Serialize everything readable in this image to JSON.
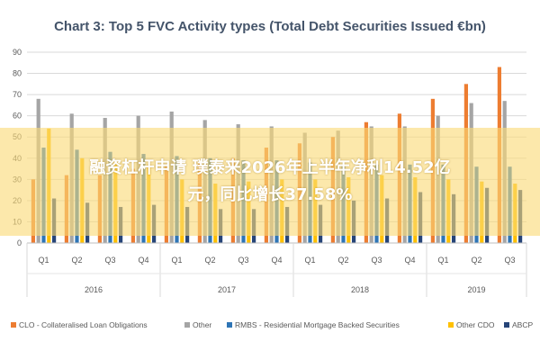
{
  "chart_data": {
    "type": "bar",
    "title": "Chart 3: Top 5 FVC Activity types (Total Debt Securities Issued €bn)",
    "ylim": [
      0,
      90
    ],
    "yticks": [
      0,
      10,
      20,
      30,
      40,
      50,
      60,
      70,
      80,
      90
    ],
    "categories": [
      "Q1",
      "Q2",
      "Q3",
      "Q4",
      "Q1",
      "Q2",
      "Q3",
      "Q4",
      "Q1",
      "Q2",
      "Q3",
      "Q4",
      "Q1",
      "Q2",
      "Q3"
    ],
    "years": [
      {
        "label": "2016",
        "span": 4
      },
      {
        "label": "2017",
        "span": 4
      },
      {
        "label": "2018",
        "span": 4
      },
      {
        "label": "2019",
        "span": 3
      }
    ],
    "series": [
      {
        "name": "CLO - Collateralised Loan Obligations",
        "color": "#ed7d31",
        "values": [
          30,
          32,
          32,
          35,
          37,
          38,
          40,
          45,
          47,
          50,
          57,
          61,
          68,
          75,
          83
        ]
      },
      {
        "name": "Other",
        "color": "#a5a5a5",
        "values": [
          68,
          61,
          59,
          60,
          62,
          58,
          56,
          55,
          52,
          53,
          55,
          55,
          60,
          66,
          67
        ]
      },
      {
        "name": "RMBS - Residential Mortgage Backed Securities",
        "color": "#2e75b6",
        "values": [
          45,
          44,
          43,
          42,
          41,
          40,
          39,
          39,
          38,
          37,
          37,
          37,
          37,
          36,
          36
        ]
      },
      {
        "name": "Other CDO",
        "color": "#ffc000",
        "values": [
          54,
          40,
          38,
          37,
          30,
          28,
          29,
          30,
          30,
          31,
          32,
          31,
          30,
          29,
          28
        ]
      },
      {
        "name": "ABCP",
        "color": "#264478",
        "values": [
          21,
          19,
          17,
          18,
          17,
          16,
          16,
          17,
          18,
          20,
          21,
          24,
          23,
          26,
          25
        ]
      }
    ],
    "legend_position": "bottom",
    "grid": true
  },
  "overlay": {
    "line1": "融资杠杆申请 璞泰来2026年上半年净利14.52亿",
    "line2": "元，同比增长37.58%"
  }
}
